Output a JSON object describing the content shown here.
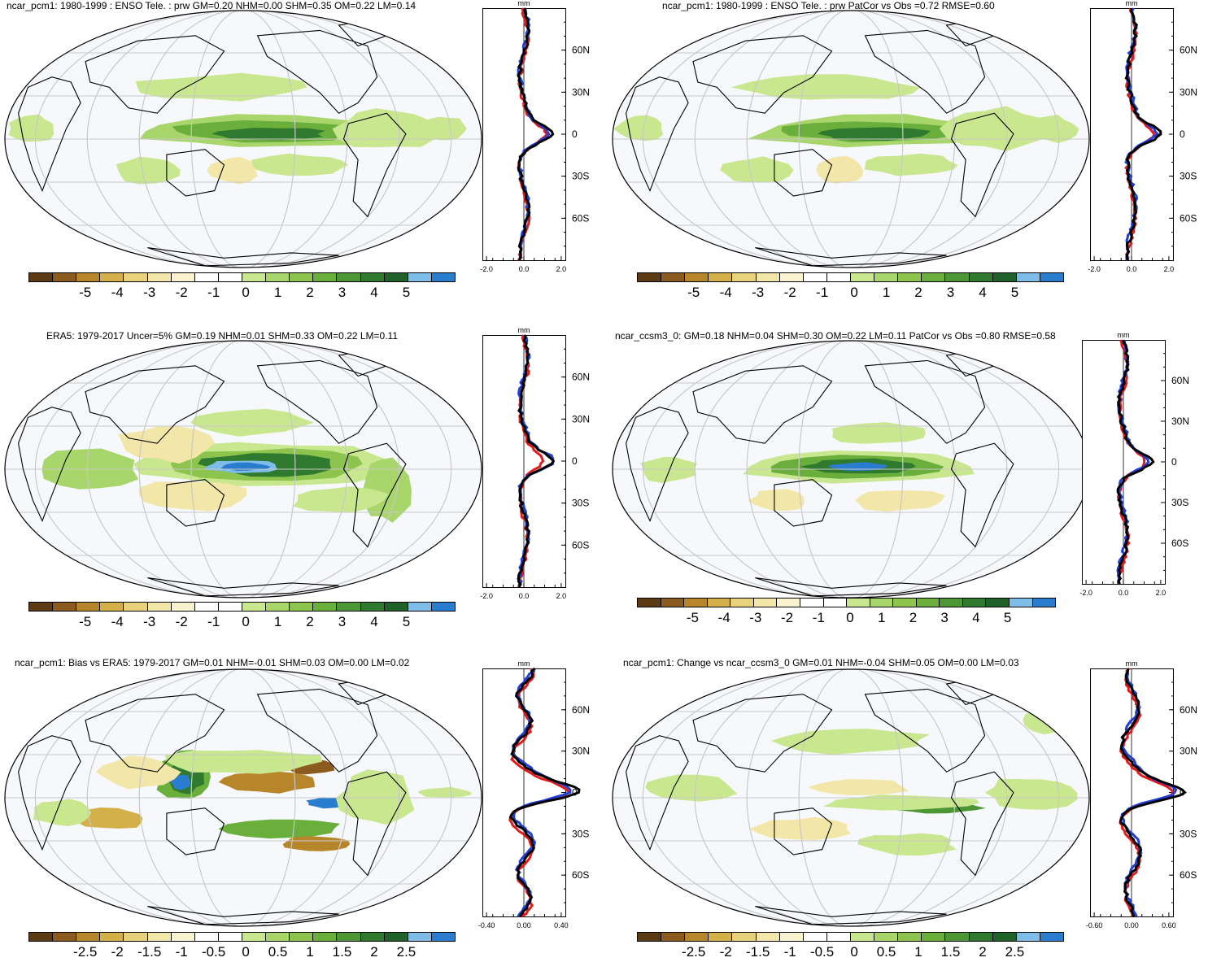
{
  "colors": {
    "scale": [
      "#5b3a14",
      "#8a5a1e",
      "#b8862a",
      "#d4b04a",
      "#e8d27c",
      "#f2e6a8",
      "#f8f2cf",
      "#ffffff",
      "#ffffff",
      "#c9e78e",
      "#a8d66a",
      "#8cc44e",
      "#6aae3c",
      "#4c9636",
      "#2f7a2e",
      "#1f6128",
      "#7fbde9",
      "#2a7ccf"
    ],
    "ocean_bg": "#f6f8fc",
    "grid": "#c8c8c8",
    "coast": "#000000",
    "model_line": "#e31a1c",
    "obs_line": "#1f3fd6",
    "diff_line": "#000000"
  },
  "panels": [
    {
      "title": "ncar_pcm1: 1980-1999 : ENSO Tele. : prw GM=0.20 NHM=0.00 SHM=0.35 OM=0.22 LM=0.14",
      "colorbar_labels": [
        "-5",
        "-4",
        "-3",
        "-2",
        "-1",
        "0",
        "1",
        "2",
        "3",
        "4",
        "5"
      ],
      "profile_unit": "mm",
      "profile_x_ticks": [
        "-2.0",
        "0.0",
        "2.0"
      ],
      "profile_y_ticks": [
        "60N",
        "30N",
        "0",
        "30S",
        "60S"
      ],
      "pattern": "model"
    },
    {
      "title": "ncar_pcm1: 1980-1999 : ENSO Tele. : prw PatCor vs Obs =0.72 RMSE=0.60",
      "colorbar_labels": [
        "-5",
        "-4",
        "-3",
        "-2",
        "-1",
        "0",
        "1",
        "2",
        "3",
        "4",
        "5"
      ],
      "profile_unit": "mm",
      "profile_x_ticks": [
        "-2.0",
        "0.0",
        "2.0"
      ],
      "profile_y_ticks": [
        "60N",
        "30N",
        "0",
        "30S",
        "60S"
      ],
      "pattern": "model"
    },
    {
      "title": "ERA5: 1979-2017 Uncer=5% GM=0.19 NHM=0.01 SHM=0.33 OM=0.22 LM=0.11",
      "colorbar_labels": [
        "-5",
        "-4",
        "-3",
        "-2",
        "-1",
        "0",
        "1",
        "2",
        "3",
        "4",
        "5"
      ],
      "profile_unit": "mm",
      "profile_x_ticks": [
        "-2.0",
        "0.0",
        "2.0"
      ],
      "profile_y_ticks": [
        "60N",
        "30N",
        "0",
        "30S",
        "60S"
      ],
      "pattern": "obs"
    },
    {
      "title": "ncar_ccsm3_0: GM=0.18 NHM=0.04 SHM=0.30 OM=0.22 LM=0.11 PatCor vs Obs =0.80 RMSE=0.58",
      "colorbar_labels": [
        "-5",
        "-4",
        "-3",
        "-2",
        "-1",
        "0",
        "1",
        "2",
        "3",
        "4",
        "5"
      ],
      "profile_unit": "mm",
      "profile_x_ticks": [
        "-2.0",
        "0.0",
        "2.0"
      ],
      "profile_y_ticks": [
        "60N",
        "30N",
        "0",
        "30S",
        "60S"
      ],
      "pattern": "obs2"
    },
    {
      "title": "ncar_pcm1: Bias vs ERA5: 1979-2017 GM=0.01 NHM=-0.01 SHM=0.03 OM=0.00 LM=0.02",
      "colorbar_labels": [
        "-2.5",
        "-2",
        "-1.5",
        "-1",
        "-0.5",
        "0",
        "0.5",
        "1",
        "1.5",
        "2",
        "2.5"
      ],
      "profile_unit": "mm",
      "profile_x_ticks": [
        "-0.40",
        "0.00",
        "0.40"
      ],
      "profile_y_ticks": [
        "60N",
        "30N",
        "0",
        "30S",
        "60S"
      ],
      "pattern": "bias"
    },
    {
      "title": "ncar_pcm1: Change vs ncar_ccsm3_0 GM=0.01 NHM=-0.04 SHM=0.05 OM=0.00 LM=0.03",
      "colorbar_labels": [
        "-2.5",
        "-2",
        "-1.5",
        "-1",
        "-0.5",
        "0",
        "0.5",
        "1",
        "1.5",
        "2",
        "2.5"
      ],
      "profile_unit": "mm",
      "profile_x_ticks": [
        "-0.60",
        "0.00",
        "0.60"
      ],
      "profile_y_ticks": [
        "60N",
        "30N",
        "0",
        "30S",
        "60S"
      ],
      "pattern": "change"
    }
  ]
}
